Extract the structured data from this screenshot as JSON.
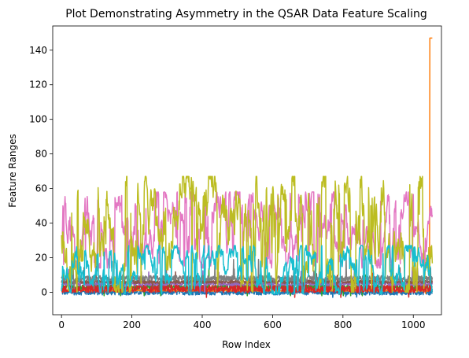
{
  "chart_data": {
    "type": "line",
    "title": "Plot Demonstrating Asymmetry in the QSAR Data Feature Scaling",
    "xlabel": "Row Index",
    "ylabel": "Feature Ranges",
    "xlim": [
      -25,
      1080
    ],
    "ylim": [
      -13,
      154
    ],
    "x_ticks": [
      0,
      200,
      400,
      600,
      800,
      1000
    ],
    "y_ticks": [
      0,
      20,
      40,
      60,
      80,
      100,
      120,
      140
    ],
    "n_rows": 1055,
    "grid": false,
    "legend": "none",
    "series": [
      {
        "color": "#1f77b4",
        "base": 0,
        "low": -2,
        "high": 6,
        "spike_prob": 0.02,
        "spike_max": 3
      },
      {
        "color": "#ff7f0e",
        "base": 1,
        "low": 0,
        "high": 2,
        "spike_prob": 0.01,
        "spike_max": 2,
        "end_spike": 147
      },
      {
        "color": "#2ca02c",
        "base": 3,
        "low": 1,
        "high": 8,
        "spike_prob": 0.03,
        "spike_max": 12
      },
      {
        "color": "#d62728",
        "base": 2,
        "low": 0,
        "high": 11,
        "spike_prob": 0.02,
        "spike_max": 10
      },
      {
        "color": "#9467bd",
        "base": 5,
        "low": 3,
        "high": 9,
        "spike_prob": 0.02,
        "spike_max": 10
      },
      {
        "color": "#8c564b",
        "base": 6,
        "low": 4,
        "high": 9,
        "spike_prob": 0.02,
        "spike_max": 10
      },
      {
        "color": "#e377c2",
        "base": 35,
        "low": 14,
        "high": 58,
        "spike_prob": 0.0,
        "spike_max": 0
      },
      {
        "color": "#7f7f7f",
        "base": 8,
        "low": 5,
        "high": 13,
        "spike_prob": 0.02,
        "spike_max": 14
      },
      {
        "color": "#bcbd22",
        "base": 10,
        "low": 0,
        "high": 67,
        "spike_prob": 0.0,
        "spike_max": 0
      },
      {
        "color": "#17becf",
        "base": 4,
        "low": -1,
        "high": 27,
        "spike_prob": 0.04,
        "spike_max": 27
      }
    ]
  }
}
